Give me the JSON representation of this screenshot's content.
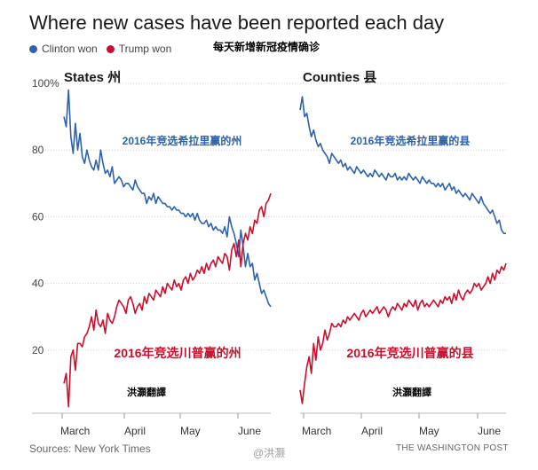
{
  "header": {
    "title": "Where new cases have been reported each day",
    "legend": [
      {
        "label": "Clinton won",
        "color": "#2f62a8"
      },
      {
        "label": "Trump won",
        "color": "#c8102e"
      }
    ],
    "caption_cn": "每天新增新冠疫情确诊"
  },
  "footer": {
    "source": "Sources: New York Times",
    "credit": "THE WASHINGTON POST",
    "watermark": "@洪灏"
  },
  "chart_data": [
    {
      "type": "line",
      "title": "States 州",
      "ylim": [
        0,
        100
      ],
      "yticks": [
        "100%",
        "80",
        "60",
        "40",
        "20"
      ],
      "x_ticks": [
        "March",
        "April",
        "May",
        "June"
      ],
      "grid": true,
      "annotations": {
        "blue_series": "2016年竞选希拉里赢的州",
        "red_series": "2016年竞选川普赢的州",
        "translator": "洪灝翻譯"
      },
      "series": [
        {
          "name": "Clinton won",
          "color": "#2f62a8",
          "values": [
            90,
            87,
            98,
            84,
            79,
            88,
            80,
            85,
            78,
            76,
            80,
            77,
            75,
            74,
            77,
            74,
            80,
            76,
            73,
            74,
            72,
            75,
            70,
            71,
            72,
            71,
            69,
            70,
            70,
            69,
            68,
            71,
            69,
            68,
            67,
            67,
            64,
            66,
            65,
            67,
            64,
            66,
            65,
            64,
            64,
            63,
            63,
            62,
            63,
            62,
            62,
            61,
            61,
            60,
            61,
            60,
            61,
            59,
            61,
            59,
            58,
            58,
            59,
            57,
            58,
            56,
            57,
            56,
            56,
            55,
            57,
            54,
            60,
            57,
            55,
            52,
            48,
            56,
            51,
            45,
            49,
            45,
            46,
            41,
            43,
            40,
            37,
            38,
            36,
            34,
            33
          ]
        },
        {
          "name": "Trump won",
          "color": "#c8102e",
          "values": [
            10,
            13,
            3,
            18,
            20,
            14,
            22,
            22,
            21,
            24,
            25,
            27,
            30,
            26,
            32,
            28,
            27,
            29,
            25,
            31,
            29,
            28,
            30,
            33,
            35,
            34,
            33,
            31,
            35,
            36,
            34,
            31,
            33,
            34,
            32,
            36,
            34,
            37,
            36,
            35,
            38,
            37,
            36,
            39,
            37,
            40,
            39,
            38,
            41,
            39,
            40,
            38,
            41,
            42,
            40,
            43,
            41,
            42,
            44,
            43,
            45,
            43,
            46,
            44,
            46,
            47,
            45,
            48,
            47,
            46,
            49,
            48,
            44,
            50,
            52,
            48,
            53,
            45,
            52,
            55,
            53,
            57,
            55,
            59,
            58,
            62,
            63,
            60,
            64,
            65,
            67
          ]
        }
      ]
    },
    {
      "type": "line",
      "title": "Counties 县",
      "ylim": [
        0,
        100
      ],
      "x_ticks": [
        "March",
        "April",
        "May",
        "June"
      ],
      "grid": true,
      "annotations": {
        "blue_series": "2016年竞选希拉里赢的县",
        "red_series": "2016年竞选川普赢的县",
        "translator": "洪灝翻譯"
      },
      "series": [
        {
          "name": "Clinton won",
          "color": "#2f62a8",
          "values": [
            92,
            96,
            90,
            91,
            87,
            84,
            86,
            83,
            81,
            82,
            80,
            79,
            78,
            76,
            79,
            78,
            77,
            76,
            77,
            75,
            76,
            74,
            75,
            74,
            73,
            75,
            74,
            73,
            74,
            73,
            72,
            73,
            72,
            74,
            73,
            72,
            73,
            72,
            71,
            73,
            72,
            72,
            73,
            71,
            72,
            71,
            72,
            71,
            73,
            72,
            71,
            72,
            71,
            70,
            72,
            71,
            70,
            71,
            70,
            70,
            69,
            70,
            69,
            70,
            68,
            69,
            70,
            68,
            69,
            67,
            68,
            67,
            66,
            67,
            66,
            65,
            67,
            66,
            65,
            64,
            66,
            64,
            63,
            62,
            61,
            62,
            60,
            58,
            59,
            56,
            55,
            55
          ]
        },
        {
          "name": "Trump won",
          "color": "#c8102e",
          "values": [
            8,
            4,
            10,
            15,
            18,
            13,
            22,
            17,
            24,
            20,
            22,
            26,
            23,
            25,
            28,
            27,
            27,
            28,
            27,
            29,
            28,
            30,
            29,
            30,
            31,
            30,
            29,
            31,
            32,
            30,
            31,
            32,
            31,
            32,
            33,
            31,
            32,
            33,
            32,
            30,
            32,
            33,
            32,
            34,
            33,
            32,
            34,
            33,
            35,
            34,
            33,
            35,
            32,
            34,
            35,
            33,
            34,
            33,
            34,
            35,
            34,
            33,
            35,
            34,
            36,
            35,
            36,
            34,
            37,
            35,
            38,
            36,
            35,
            37,
            38,
            37,
            38,
            40,
            39,
            40,
            38,
            39,
            40,
            42,
            40,
            43,
            41,
            44,
            43,
            45,
            44,
            46
          ]
        }
      ]
    }
  ]
}
